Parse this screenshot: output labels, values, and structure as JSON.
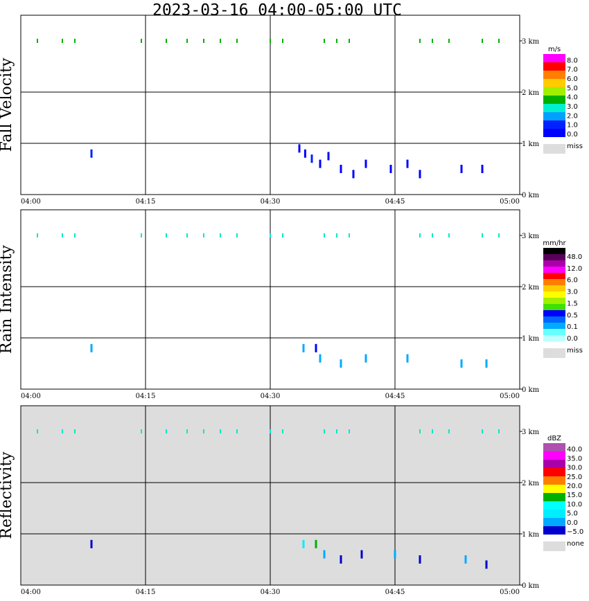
{
  "title": "2023-03-16  04:00-05:00 UTC",
  "chart_data": {
    "type": "heatmap",
    "title": "2023-03-16  04:00-05:00 UTC",
    "x_ticks": [
      "04:00",
      "04:15",
      "04:30",
      "04:45",
      "05:00"
    ],
    "x_range_minutes": [
      0,
      60
    ],
    "y_ticks": [
      "0 km",
      "1 km",
      "2 km",
      "3 km"
    ],
    "y_range_km": [
      0,
      3.5
    ],
    "grid": true,
    "panels": [
      {
        "name": "Fall Velocity",
        "unit": "m/s",
        "background": "#ffffff",
        "legend_labels": [
          "8.0",
          "7.0",
          "6.0",
          "5.0",
          "4.0",
          "3.0",
          "2.0",
          "1.0",
          "0.0"
        ],
        "legend_colors": [
          "#ff00ff",
          "#ff0000",
          "#ff8000",
          "#ffcc00",
          "#a0f000",
          "#00b000",
          "#00f0d0",
          "#00a0ff",
          "#0022ff",
          "#0000ff"
        ],
        "missing_label": "miss",
        "missing_color": "#dddddd",
        "cells": [
          {
            "t": 8.5,
            "h": 0.8,
            "v": 1.5
          },
          {
            "t": 33.5,
            "h": 0.9,
            "v": 0.5
          },
          {
            "t": 34.2,
            "h": 0.8,
            "v": 0.5
          },
          {
            "t": 35,
            "h": 0.7,
            "v": 1.5
          },
          {
            "t": 36,
            "h": 0.6,
            "v": 0.5
          },
          {
            "t": 37,
            "h": 0.75,
            "v": 0.5
          },
          {
            "t": 38.5,
            "h": 0.5,
            "v": 0.5
          },
          {
            "t": 40,
            "h": 0.4,
            "v": 0.5
          },
          {
            "t": 41.5,
            "h": 0.6,
            "v": 0.5
          },
          {
            "t": 44.5,
            "h": 0.5,
            "v": 0.5
          },
          {
            "t": 46.5,
            "h": 0.6,
            "v": 0.5
          },
          {
            "t": 48,
            "h": 0.4,
            "v": 0.5
          },
          {
            "t": 53,
            "h": 0.5,
            "v": 0.5
          },
          {
            "t": 55.5,
            "h": 0.5,
            "v": 0.5
          }
        ]
      },
      {
        "name": "Rain Intensity",
        "unit": "mm/hr",
        "background": "#ffffff",
        "legend_labels": [
          "48.0",
          "12.0",
          "6.0",
          "3.0",
          "1.5",
          "0.5",
          "0.1",
          "0.0"
        ],
        "legend_colors": [
          "#000000",
          "#5a005a",
          "#aa00aa",
          "#ff00ff",
          "#ff0000",
          "#ff8000",
          "#ffcc00",
          "#ffff00",
          "#a0f000",
          "#40e000",
          "#0000ff",
          "#0066ff",
          "#00aaff",
          "#66ffff",
          "#bbffff"
        ],
        "missing_label": "miss",
        "missing_color": "#dddddd",
        "cells": [
          {
            "t": 8.5,
            "h": 0.8,
            "v": 0.2
          },
          {
            "t": 34,
            "h": 0.8,
            "v": 0.2
          },
          {
            "t": 35.5,
            "h": 0.8,
            "v": 0.6
          },
          {
            "t": 36,
            "h": 0.6,
            "v": 0.2
          },
          {
            "t": 38.5,
            "h": 0.5,
            "v": 0.1
          },
          {
            "t": 41.5,
            "h": 0.6,
            "v": 0.1
          },
          {
            "t": 46.5,
            "h": 0.6,
            "v": 0.1
          },
          {
            "t": 53,
            "h": 0.5,
            "v": 0.1
          },
          {
            "t": 56,
            "h": 0.5,
            "v": 0.1
          }
        ]
      },
      {
        "name": "Reflectivity",
        "unit": "dBZ",
        "background": "#dddddd",
        "legend_labels": [
          "40.0",
          "35.0",
          "30.0",
          "25.0",
          "20.0",
          "15.0",
          "10.0",
          "5.0",
          "0.0",
          "−5.0"
        ],
        "legend_colors": [
          "#b050b0",
          "#ff00ff",
          "#aa00aa",
          "#ff0000",
          "#ff8000",
          "#ffff00",
          "#00b000",
          "#00ffff",
          "#00eeff",
          "#00aaff",
          "#0000cc"
        ],
        "missing_label": "none",
        "missing_color": "#dddddd",
        "cells": [
          {
            "t": 8.5,
            "h": 0.8,
            "v": -5
          },
          {
            "t": 34,
            "h": 0.8,
            "v": 5
          },
          {
            "t": 35.5,
            "h": 0.8,
            "v": 15
          },
          {
            "t": 36.5,
            "h": 0.6,
            "v": 0
          },
          {
            "t": 38.5,
            "h": 0.5,
            "v": -5
          },
          {
            "t": 41,
            "h": 0.6,
            "v": -5
          },
          {
            "t": 45,
            "h": 0.6,
            "v": 0
          },
          {
            "t": 48,
            "h": 0.5,
            "v": -5
          },
          {
            "t": 53.5,
            "h": 0.5,
            "v": 0
          },
          {
            "t": 56,
            "h": 0.4,
            "v": -5
          }
        ]
      }
    ]
  }
}
